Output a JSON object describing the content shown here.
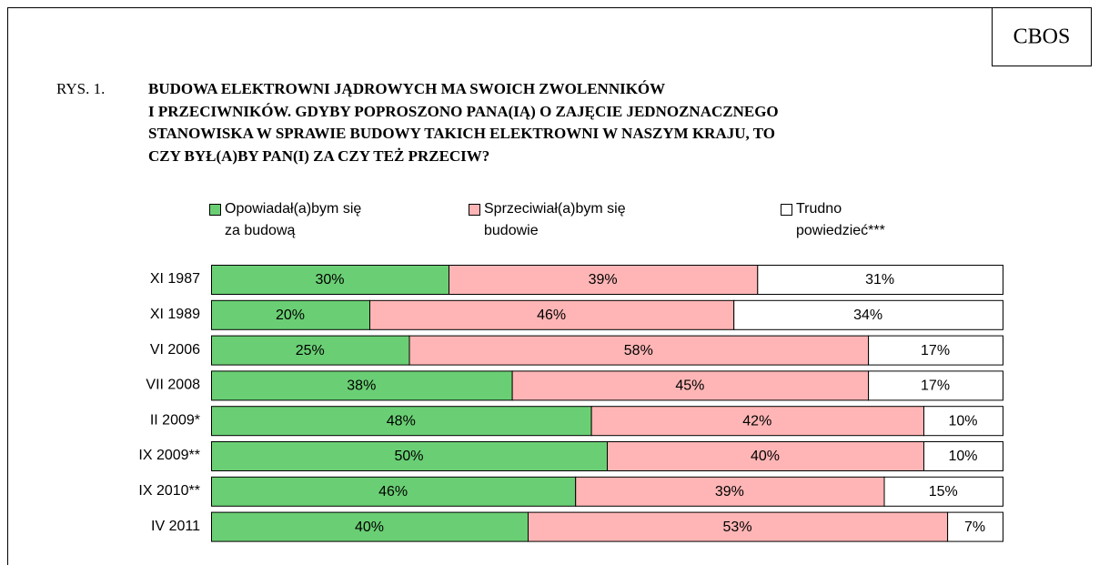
{
  "chart_data": {
    "type": "stacked-bar-horizontal",
    "source": "CBOS",
    "figure_label": "RYS. 1.",
    "title": "BUDOWA ELEKTROWNI JĄDROWYCH MA SWOICH ZWOLENNIKÓW\nI PRZECIWNIKÓW. GDYBY POPROSZONO PANA(IĄ) O ZAJĘCIE JEDNOZNACZNEGO\nSTANOWISKA W SPRAWIE BUDOWY TAKICH ELEKTROWNI W NASZYM KRAJU, TO\nCZY BYŁ(A)BY PAN(I) ZA CZY TEŻ PRZECIW?",
    "categories": [
      "XI 1987",
      "XI 1989",
      "VI 2006",
      "VII 2008",
      "II 2009*",
      "IX 2009**",
      "IX 2010**",
      "IV 2011"
    ],
    "series": [
      {
        "name": "Opowiadał(a)bym się\nza budową",
        "color": "#6acf74",
        "values": [
          30,
          20,
          25,
          38,
          48,
          50,
          46,
          40
        ],
        "value_labels": [
          "30%",
          "20%",
          "25%",
          "38%",
          "48%",
          "50%",
          "46%",
          "40%"
        ]
      },
      {
        "name": "Sprzeciwiał(a)bym się\nbudowie",
        "color": "#ffb5b5",
        "values": [
          39,
          46,
          58,
          45,
          42,
          40,
          39,
          53
        ],
        "value_labels": [
          "39%",
          "46%",
          "58%",
          "45%",
          "42%",
          "40%",
          "39%",
          "53%"
        ]
      },
      {
        "name": "Trudno\npowiedzieć***",
        "color": "#ffffff",
        "values": [
          31,
          34,
          17,
          17,
          10,
          10,
          15,
          7
        ],
        "value_labels": [
          "31%",
          "34%",
          "17%",
          "17%",
          "10%",
          "10%",
          "15%",
          "7%"
        ]
      }
    ]
  }
}
